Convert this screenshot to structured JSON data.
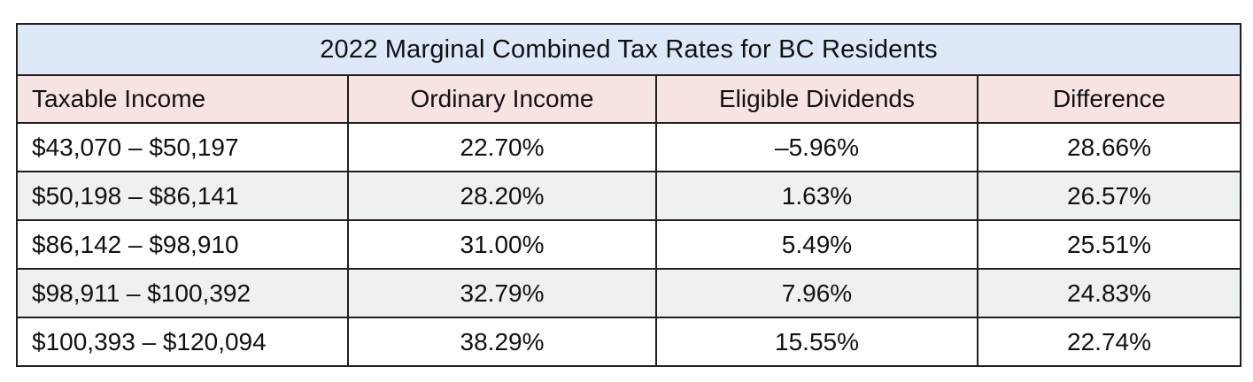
{
  "table": {
    "title": "2022 Marginal Combined Tax Rates for BC Residents",
    "headers": [
      "Taxable Income",
      "Ordinary Income",
      "Eligible Dividends",
      "Difference"
    ],
    "rows": [
      [
        "$43,070 – $50,197",
        "22.70%",
        "–5.96%",
        "28.66%"
      ],
      [
        "$50,198 – $86,141",
        "28.20%",
        "1.63%",
        "26.57%"
      ],
      [
        "$86,142 – $98,910",
        "31.00%",
        "5.49%",
        "25.51%"
      ],
      [
        "$98,911 – $100,392",
        "32.79%",
        "7.96%",
        "24.83%"
      ],
      [
        "$100,393 – $120,094",
        "38.29%",
        "15.55%",
        "22.74%"
      ]
    ]
  },
  "colors": {
    "title_background": "#dde9f8",
    "header_background": "#f6e3e2",
    "alternate_row_background": "#edf1f1",
    "border": "#1f1f1f"
  }
}
